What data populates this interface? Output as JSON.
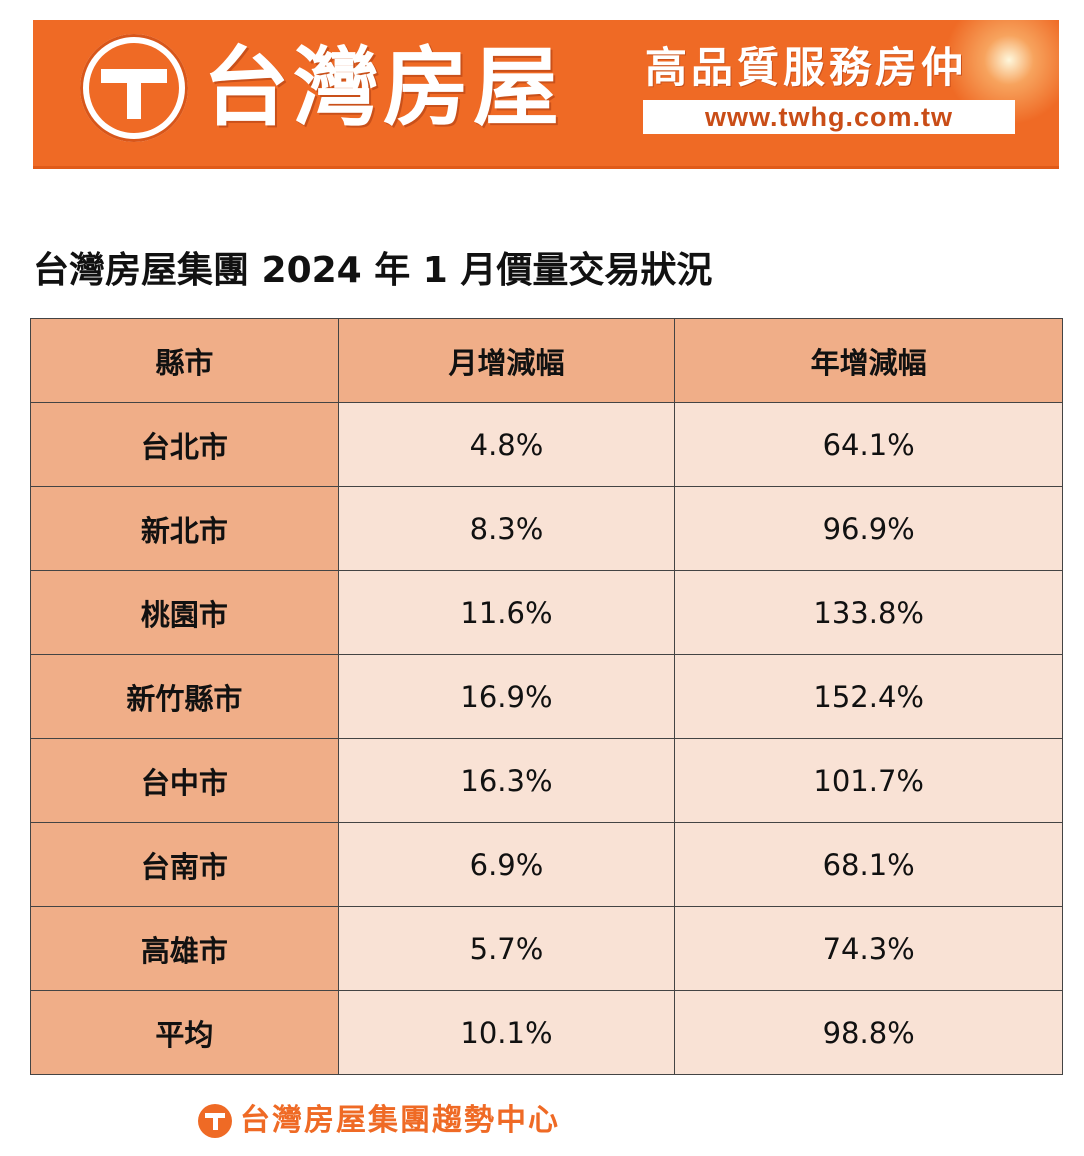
{
  "header": {
    "brand_name": "台灣房屋",
    "slogan": "高品質服務房仲",
    "url": "www.twhg.com.tw"
  },
  "title": "台灣房屋集團 2024 年 1 月價量交易狀況",
  "table": {
    "headers": [
      "縣市",
      "月增減幅",
      "年增減幅"
    ],
    "rows": [
      [
        "台北市",
        "4.8%",
        "64.1%"
      ],
      [
        "新北市",
        "8.3%",
        "96.9%"
      ],
      [
        "桃園市",
        "11.6%",
        "133.8%"
      ],
      [
        "新竹縣市",
        "16.9%",
        "152.4%"
      ],
      [
        "台中市",
        "16.3%",
        "101.7%"
      ],
      [
        "台南市",
        "6.9%",
        "68.1%"
      ],
      [
        "高雄市",
        "5.7%",
        "74.3%"
      ],
      [
        "平均",
        "10.1%",
        "98.8%"
      ]
    ]
  },
  "footer": {
    "text": "台灣房屋集團趨勢中心"
  },
  "colors": {
    "brand_orange": "#ef6a25",
    "header_cell": "#f0ae88",
    "body_cell": "#f9e2d5"
  }
}
